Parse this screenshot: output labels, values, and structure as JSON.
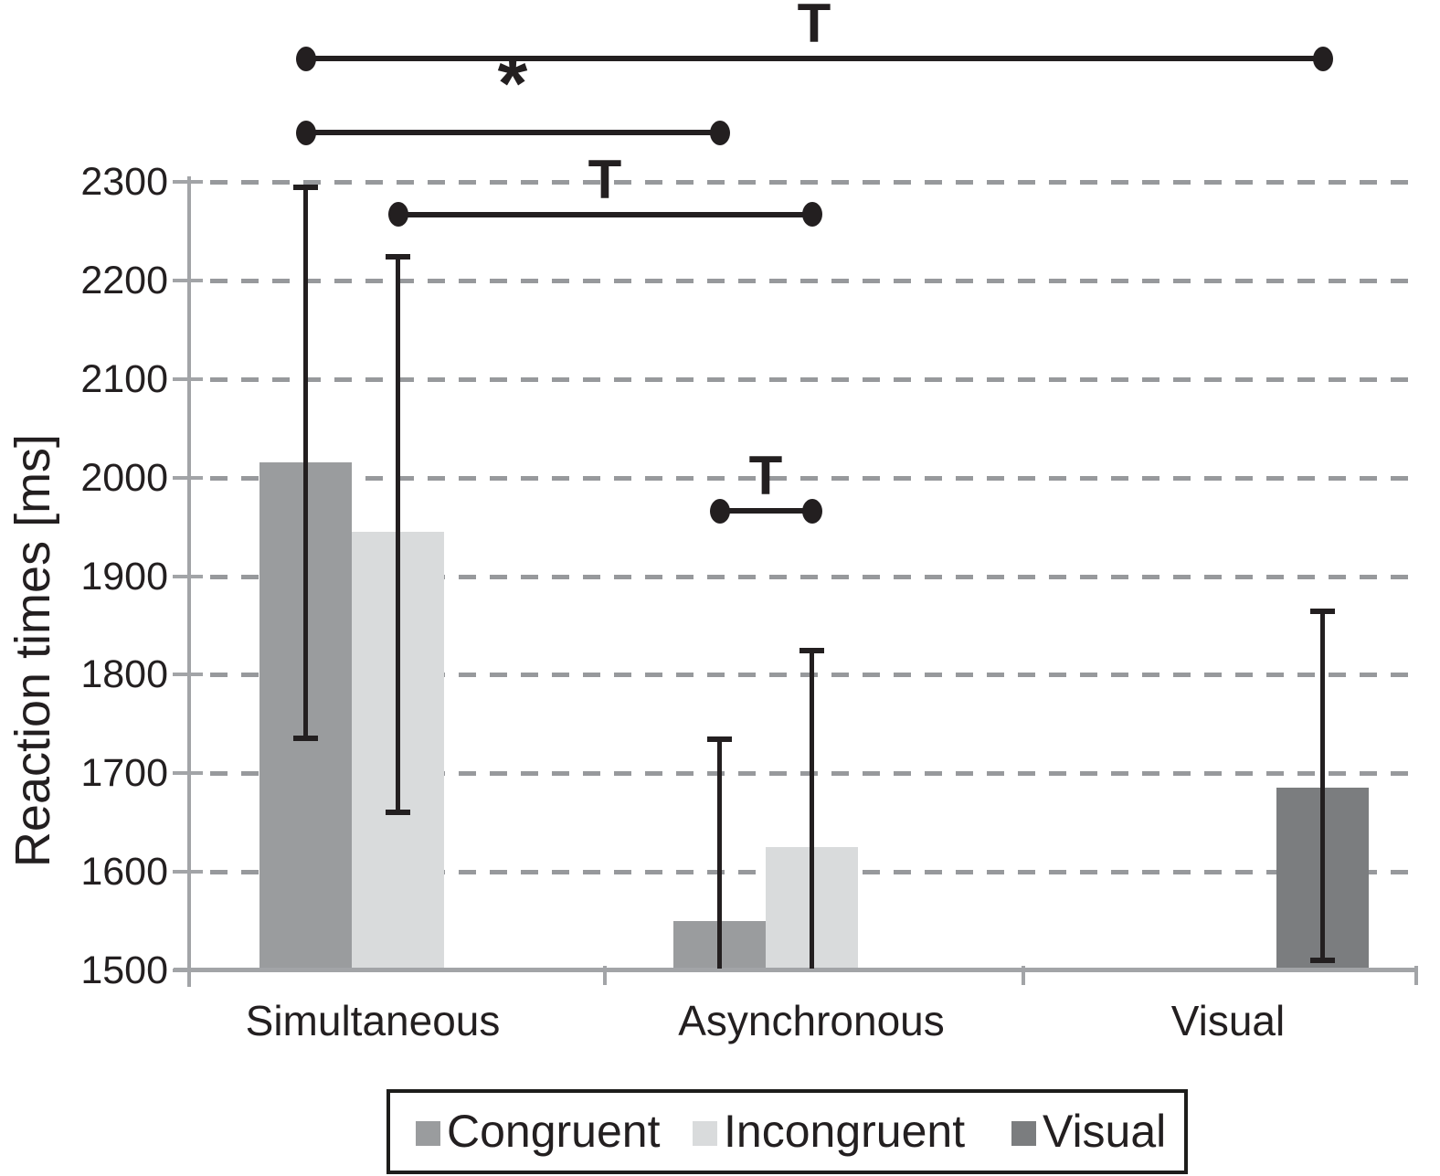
{
  "chart_data": {
    "type": "bar",
    "title": "",
    "ylabel": "Reaction times [ms]",
    "xlabel": "",
    "ylim": [
      1500,
      2300
    ],
    "yticks": [
      1500,
      1600,
      1700,
      1800,
      1900,
      2000,
      2100,
      2200,
      2300
    ],
    "grid": "horizontal dashed",
    "legend_position": "bottom",
    "categories": [
      "Simultaneous",
      "Asynchronous",
      "Visual"
    ],
    "series": [
      {
        "name": "Congruent",
        "color": "#9a9c9e",
        "values": [
          2015,
          1550,
          null
        ],
        "error_high": [
          2295,
          1735,
          null
        ],
        "error_low": [
          1735,
          1500,
          null
        ]
      },
      {
        "name": "Incongruent",
        "color": "#d9dbdc",
        "values": [
          1945,
          1625,
          null
        ],
        "error_high": [
          2225,
          1825,
          null
        ],
        "error_low": [
          1660,
          1500,
          null
        ]
      },
      {
        "name": "Visual",
        "color": "#7b7d7f",
        "values": [
          null,
          null,
          1685
        ],
        "error_high": [
          null,
          null,
          1865
        ],
        "error_low": [
          null,
          null,
          1510
        ]
      }
    ],
    "significance_brackets": [
      {
        "label": "T",
        "from_category": 0,
        "from_series": 0,
        "to_category": 2,
        "to_series": 2,
        "y_value": 2425
      },
      {
        "label": "*",
        "from_category": 0,
        "from_series": 0,
        "to_category": 1,
        "to_series": 0,
        "y_value": 2350
      },
      {
        "label": "T",
        "from_category": 0,
        "from_series": 1,
        "to_category": 1,
        "to_series": 1,
        "y_value": 2267
      },
      {
        "label": "T",
        "from_category": 1,
        "from_series": 0,
        "to_category": 1,
        "to_series": 1,
        "y_value": 1966
      }
    ]
  }
}
